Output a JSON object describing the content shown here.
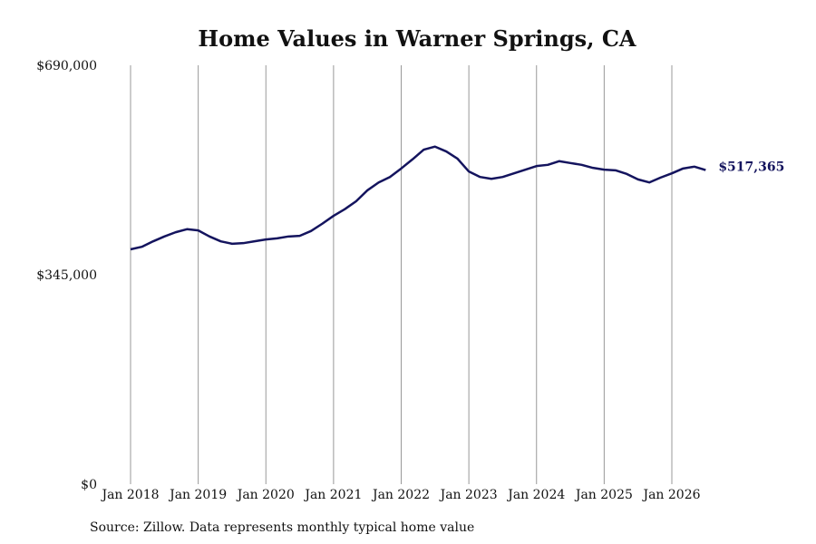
{
  "chart_data": {
    "type": "line",
    "title": "Home Values in Warner Springs, CA",
    "source": "Source: Zillow. Data represents monthly typical home value",
    "x": [
      "2018-01",
      "2018-03",
      "2018-05",
      "2018-07",
      "2018-09",
      "2018-11",
      "2019-01",
      "2019-03",
      "2019-05",
      "2019-07",
      "2019-09",
      "2019-11",
      "2020-01",
      "2020-03",
      "2020-05",
      "2020-07",
      "2020-09",
      "2020-11",
      "2021-01",
      "2021-03",
      "2021-05",
      "2021-07",
      "2021-09",
      "2021-11",
      "2022-01",
      "2022-03",
      "2022-05",
      "2022-07",
      "2022-09",
      "2022-11",
      "2023-01",
      "2023-03",
      "2023-05",
      "2023-07",
      "2023-09",
      "2023-11",
      "2024-01",
      "2024-03",
      "2024-05",
      "2024-07",
      "2024-09",
      "2024-11",
      "2025-01",
      "2025-03",
      "2025-05",
      "2025-07",
      "2025-09",
      "2025-11",
      "2026-01",
      "2026-03",
      "2026-05",
      "2026-07"
    ],
    "series": [
      {
        "color": "#14145e",
        "values": [
          386800,
          391000,
          400000,
          408000,
          415000,
          420000,
          418000,
          408000,
          400000,
          396000,
          397000,
          400000,
          403000,
          405000,
          408000,
          409000,
          417000,
          429000,
          442000,
          453000,
          466000,
          484000,
          497000,
          506000,
          520000,
          535000,
          551000,
          556000,
          548000,
          536000,
          515000,
          506000,
          503000,
          506000,
          512000,
          518000,
          524000,
          526000,
          532000,
          529000,
          526000,
          521000,
          518000,
          517000,
          511000,
          502000,
          497000,
          505000,
          512000,
          520000,
          523000,
          517365
        ],
        "end_label": "$517,365"
      }
    ],
    "xlim": [
      "2018-01",
      "2026-07"
    ],
    "xticks": [
      {
        "value": "2018-01",
        "label": "Jan 2018"
      },
      {
        "value": "2019-01",
        "label": "Jan 2019"
      },
      {
        "value": "2020-01",
        "label": "Jan 2020"
      },
      {
        "value": "2021-01",
        "label": "Jan 2021"
      },
      {
        "value": "2022-01",
        "label": "Jan 2022"
      },
      {
        "value": "2023-01",
        "label": "Jan 2023"
      },
      {
        "value": "2024-01",
        "label": "Jan 2024"
      },
      {
        "value": "2025-01",
        "label": "Jan 2025"
      },
      {
        "value": "2026-01",
        "label": "Jan 2026"
      }
    ],
    "ylim": [
      0,
      690000
    ],
    "yticks": [
      {
        "value": 0,
        "label": "$0"
      },
      {
        "value": 345000,
        "label": "$345,000"
      },
      {
        "value": 690000,
        "label": "$690,000"
      }
    ],
    "grid": "x"
  }
}
